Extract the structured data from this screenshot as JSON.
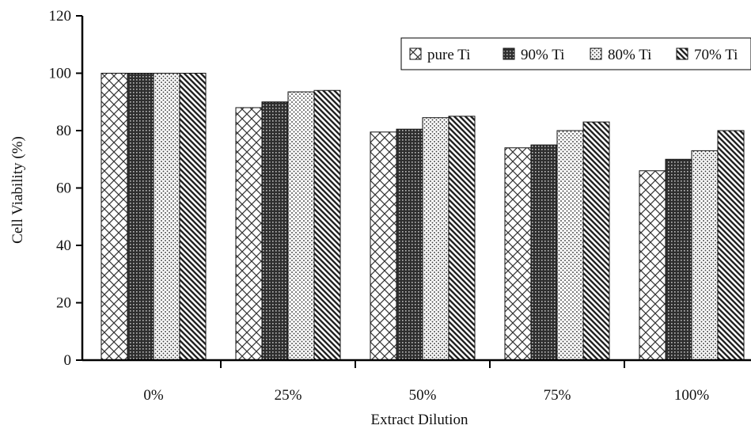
{
  "chart_data": {
    "type": "bar",
    "title": "",
    "xlabel": "Extract Dilution",
    "ylabel": "Cell Viability (%)",
    "ylim": [
      0,
      120
    ],
    "yticks": [
      0,
      20,
      40,
      60,
      80,
      100,
      120
    ],
    "grid": false,
    "legend_position": "top-right",
    "categories": [
      "0%",
      "25%",
      "50%",
      "75%",
      "100%"
    ],
    "series": [
      {
        "name": "pure Ti",
        "pattern": "crosshatch",
        "values": [
          100,
          88,
          79.5,
          74,
          66
        ]
      },
      {
        "name": "90% Ti",
        "pattern": "dense-dark",
        "values": [
          100,
          90,
          80.5,
          75,
          70
        ]
      },
      {
        "name": "80% Ti",
        "pattern": "dots",
        "values": [
          100,
          93.5,
          84.5,
          80,
          73
        ]
      },
      {
        "name": "70% Ti",
        "pattern": "diagonal",
        "values": [
          100,
          94,
          85,
          83,
          80
        ]
      }
    ]
  }
}
